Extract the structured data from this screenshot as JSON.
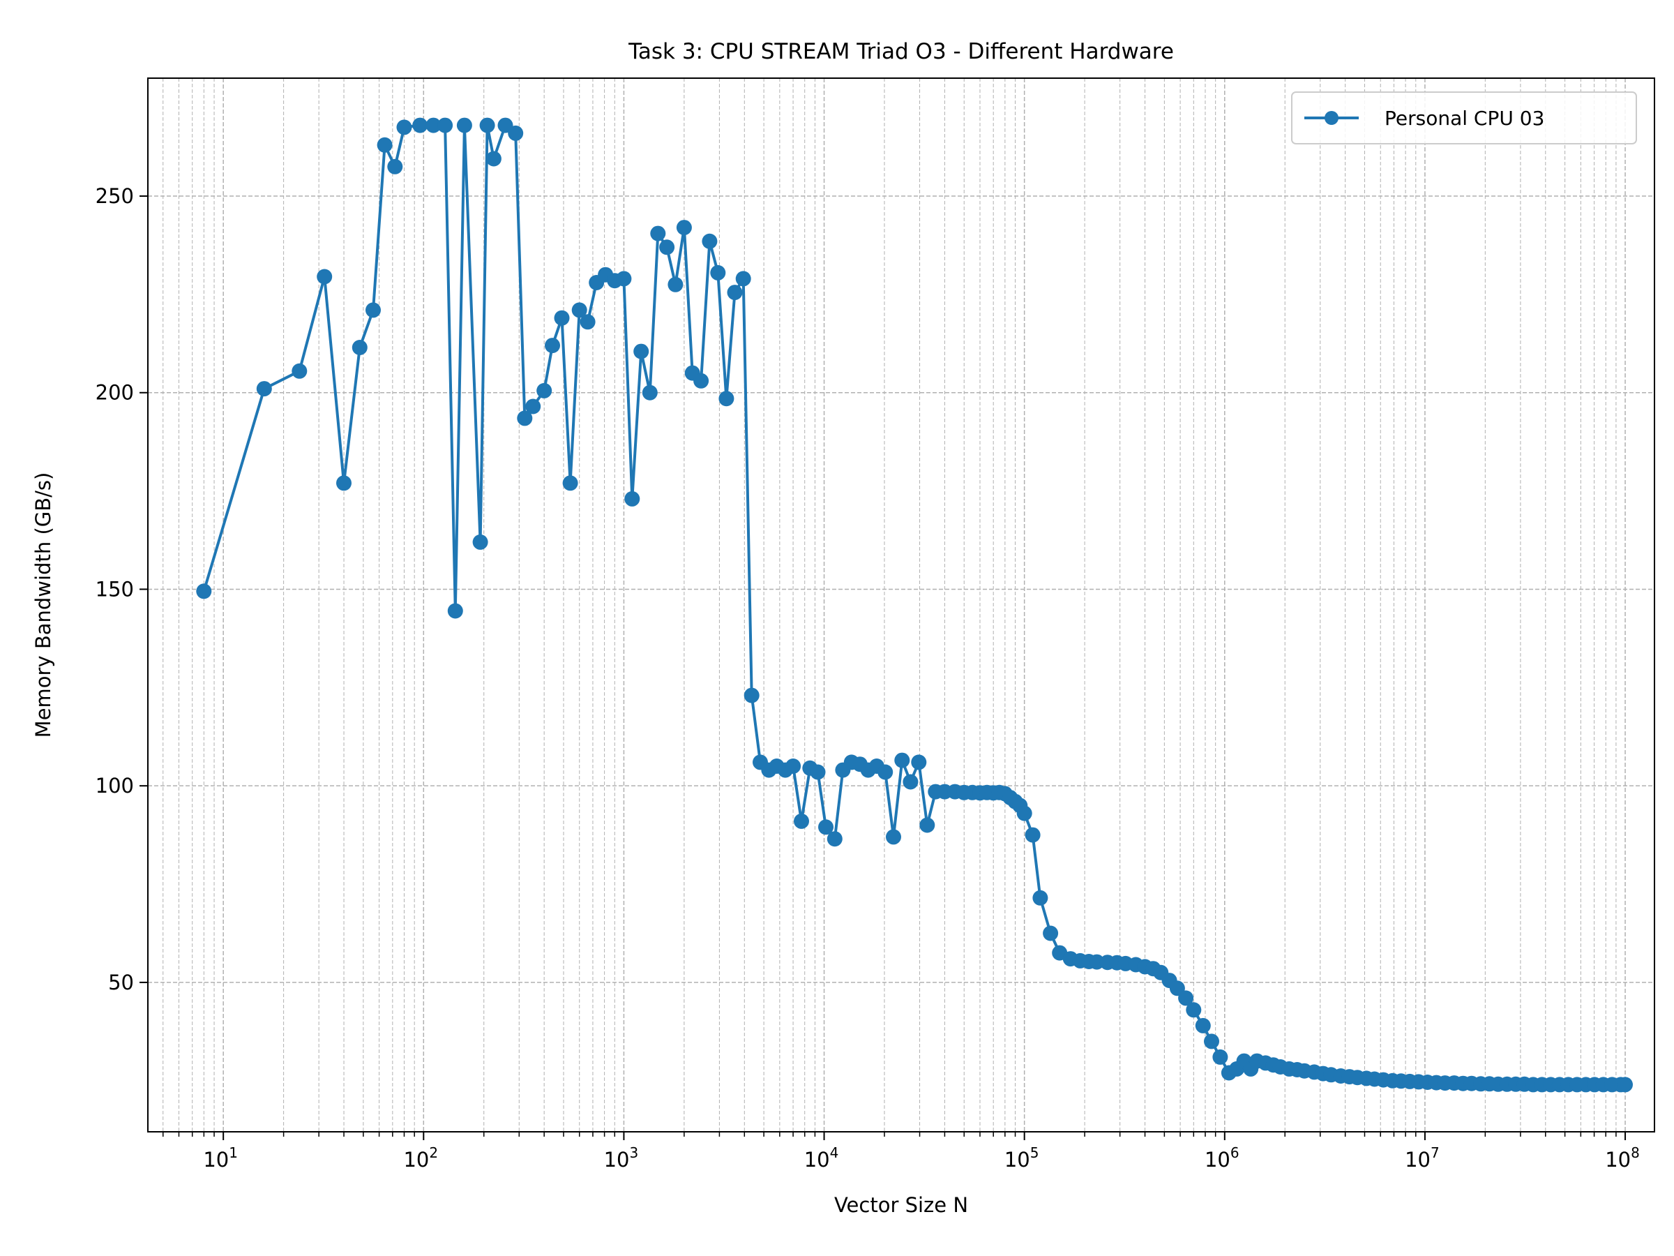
{
  "chart_data": {
    "type": "line",
    "title": "Task 3: CPU STREAM Triad O3 -  Different Hardware",
    "xlabel": "Vector Size N",
    "ylabel": "Memory Bandwidth (GB/s)",
    "xscale": "log",
    "xlim": [
      4.2,
      140000000
    ],
    "ylim": [
      12,
      280
    ],
    "grid": "major and minor, dashed",
    "legend_position": "upper right",
    "x_ticks": [
      {
        "value": 10,
        "base": "10",
        "exp": "1"
      },
      {
        "value": 100,
        "base": "10",
        "exp": "2"
      },
      {
        "value": 1000,
        "base": "10",
        "exp": "3"
      },
      {
        "value": 10000,
        "base": "10",
        "exp": "4"
      },
      {
        "value": 100000,
        "base": "10",
        "exp": "5"
      },
      {
        "value": 1000000,
        "base": "10",
        "exp": "6"
      },
      {
        "value": 10000000,
        "base": "10",
        "exp": "7"
      },
      {
        "value": 100000000,
        "base": "10",
        "exp": "8"
      }
    ],
    "y_ticks": [
      50,
      100,
      150,
      200,
      250
    ],
    "series": [
      {
        "name": "Personal CPU 03",
        "color": "#1f77b4",
        "marker": "circle",
        "points": [
          [
            8,
            149.5
          ],
          [
            16,
            201
          ],
          [
            24,
            205.5
          ],
          [
            32,
            229.5
          ],
          [
            40,
            177
          ],
          [
            48,
            211.5
          ],
          [
            56,
            221
          ],
          [
            64,
            263
          ],
          [
            72,
            257.5
          ],
          [
            80,
            267.5
          ],
          [
            96,
            268
          ],
          [
            112,
            268
          ],
          [
            128,
            268
          ],
          [
            144,
            144.5
          ],
          [
            160,
            268
          ],
          [
            192,
            162
          ],
          [
            208,
            268
          ],
          [
            224,
            259.5
          ],
          [
            256,
            268
          ],
          [
            288,
            266
          ],
          [
            320,
            193.5
          ],
          [
            352,
            196.5
          ],
          [
            400,
            200.5
          ],
          [
            440,
            212
          ],
          [
            490,
            219
          ],
          [
            540,
            177
          ],
          [
            600,
            221
          ],
          [
            660,
            218
          ],
          [
            730,
            228
          ],
          [
            810,
            230
          ],
          [
            900,
            228.5
          ],
          [
            1000,
            229
          ],
          [
            1100,
            173
          ],
          [
            1220,
            210.5
          ],
          [
            1350,
            200
          ],
          [
            1480,
            240.5
          ],
          [
            1640,
            237
          ],
          [
            1810,
            227.5
          ],
          [
            2000,
            242
          ],
          [
            2200,
            205
          ],
          [
            2430,
            203
          ],
          [
            2680,
            238.5
          ],
          [
            2950,
            230.5
          ],
          [
            3250,
            198.5
          ],
          [
            3580,
            225.5
          ],
          [
            3950,
            229
          ],
          [
            4350,
            123
          ],
          [
            4800,
            106
          ],
          [
            5300,
            104
          ],
          [
            5800,
            105
          ],
          [
            6400,
            104
          ],
          [
            7000,
            105
          ],
          [
            7700,
            91
          ],
          [
            8500,
            104.5
          ],
          [
            9300,
            103.5
          ],
          [
            10200,
            89.5
          ],
          [
            11300,
            86.5
          ],
          [
            12400,
            104
          ],
          [
            13700,
            106
          ],
          [
            15100,
            105.5
          ],
          [
            16600,
            104
          ],
          [
            18300,
            105
          ],
          [
            20200,
            103.5
          ],
          [
            22200,
            87
          ],
          [
            24500,
            106.5
          ],
          [
            27000,
            101
          ],
          [
            29700,
            106
          ],
          [
            32700,
            90
          ],
          [
            36000,
            98.5
          ],
          [
            40000,
            98.5
          ],
          [
            45000,
            98.5
          ],
          [
            50000,
            98.3
          ],
          [
            55000,
            98.3
          ],
          [
            60000,
            98.2
          ],
          [
            65000,
            98.3
          ],
          [
            70000,
            98.2
          ],
          [
            75000,
            98.3
          ],
          [
            80000,
            98
          ],
          [
            85000,
            97
          ],
          [
            90000,
            96
          ],
          [
            95000,
            95
          ],
          [
            100000,
            93
          ],
          [
            110000,
            87.5
          ],
          [
            120000,
            71.5
          ],
          [
            135000,
            62.5
          ],
          [
            150000,
            57.5
          ],
          [
            170000,
            56
          ],
          [
            190000,
            55.5
          ],
          [
            210000,
            55.3
          ],
          [
            230000,
            55.2
          ],
          [
            260000,
            55.1
          ],
          [
            290000,
            55
          ],
          [
            320000,
            54.8
          ],
          [
            360000,
            54.5
          ],
          [
            400000,
            54
          ],
          [
            440000,
            53.5
          ],
          [
            480000,
            52.5
          ],
          [
            530000,
            50.5
          ],
          [
            580000,
            48.5
          ],
          [
            640000,
            46
          ],
          [
            700000,
            43
          ],
          [
            780000,
            39
          ],
          [
            860000,
            35
          ],
          [
            950000,
            31
          ],
          [
            1050000,
            27
          ],
          [
            1150000,
            28
          ],
          [
            1250000,
            30
          ],
          [
            1350000,
            28
          ],
          [
            1450000,
            30
          ],
          [
            1600000,
            29.5
          ],
          [
            1750000,
            29
          ],
          [
            1900000,
            28.5
          ],
          [
            2100000,
            28
          ],
          [
            2300000,
            27.8
          ],
          [
            2500000,
            27.5
          ],
          [
            2800000,
            27.2
          ],
          [
            3100000,
            26.8
          ],
          [
            3400000,
            26.5
          ],
          [
            3800000,
            26.2
          ],
          [
            4200000,
            26
          ],
          [
            4600000,
            25.8
          ],
          [
            5100000,
            25.6
          ],
          [
            5600000,
            25.4
          ],
          [
            6200000,
            25.2
          ],
          [
            6900000,
            25
          ],
          [
            7600000,
            24.9
          ],
          [
            8400000,
            24.8
          ],
          [
            9300000,
            24.7
          ],
          [
            10300000,
            24.6
          ],
          [
            11400000,
            24.5
          ],
          [
            12600000,
            24.4
          ],
          [
            14000000,
            24.4
          ],
          [
            15500000,
            24.3
          ],
          [
            17100000,
            24.3
          ],
          [
            19000000,
            24.2
          ],
          [
            21000000,
            24.2
          ],
          [
            23200000,
            24.1
          ],
          [
            25700000,
            24.1
          ],
          [
            28400000,
            24.1
          ],
          [
            31400000,
            24.1
          ],
          [
            34700000,
            24
          ],
          [
            38400000,
            24
          ],
          [
            42500000,
            24
          ],
          [
            47000000,
            24
          ],
          [
            52000000,
            24
          ],
          [
            57500000,
            24
          ],
          [
            63600000,
            24
          ],
          [
            70300000,
            24
          ],
          [
            77800000,
            24
          ],
          [
            86000000,
            24
          ],
          [
            95000000,
            24
          ],
          [
            100000000,
            24
          ]
        ]
      }
    ]
  }
}
